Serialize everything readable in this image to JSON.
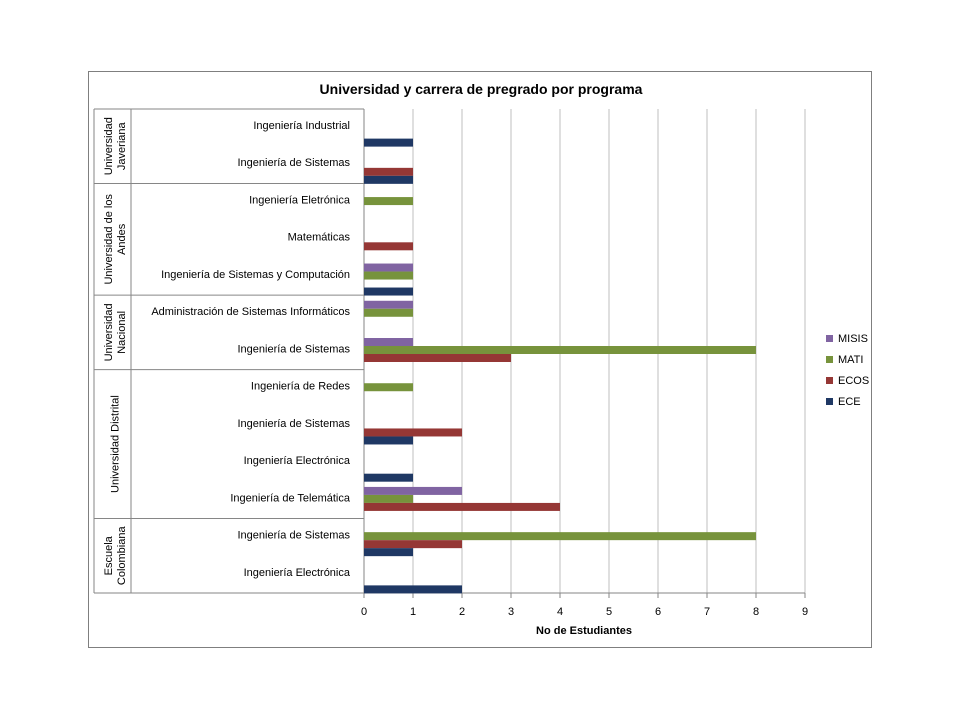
{
  "chart_data": {
    "type": "bar",
    "orientation": "horizontal",
    "title": "Universidad y carrera de pregrado por programa",
    "xlabel": "No de Estudiantes",
    "xlim": [
      0,
      9
    ],
    "xticks": [
      "0",
      "1",
      "2",
      "3",
      "4",
      "5",
      "6",
      "7",
      "8",
      "9"
    ],
    "grid": true,
    "legend_position": "right",
    "groups": [
      {
        "name": "Universidad Javeriana",
        "lines": [
          "Universidad",
          "Javeriana"
        ],
        "categories": [
          {
            "label": "Ingeniería Industrial",
            "values": {
              "MISIS": 0,
              "MATI": 0,
              "ECOS": 0,
              "ECE": 1
            }
          },
          {
            "label": "Ingeniería de Sistemas",
            "values": {
              "MISIS": 0,
              "MATI": 0,
              "ECOS": 1,
              "ECE": 1
            }
          }
        ]
      },
      {
        "name": "Universidad de los Andes",
        "lines": [
          "Universidad de los",
          "Andes"
        ],
        "categories": [
          {
            "label": "Ingeniería Eletrónica",
            "values": {
              "MISIS": 0,
              "MATI": 1,
              "ECOS": 0,
              "ECE": 0
            }
          },
          {
            "label": "Matemáticas",
            "values": {
              "MISIS": 0,
              "MATI": 0,
              "ECOS": 1,
              "ECE": 0
            }
          },
          {
            "label": "Ingeniería de Sistemas y Computación",
            "values": {
              "MISIS": 1,
              "MATI": 1,
              "ECOS": 0,
              "ECE": 1
            }
          }
        ]
      },
      {
        "name": "Universidad Nacional",
        "lines": [
          "Universidad",
          "Nacional"
        ],
        "categories": [
          {
            "label": "Administración de Sistemas Informáticos",
            "values": {
              "MISIS": 1,
              "MATI": 1,
              "ECOS": 0,
              "ECE": 0
            }
          },
          {
            "label": "Ingeniería de Sistemas",
            "values": {
              "MISIS": 1,
              "MATI": 8,
              "ECOS": 3,
              "ECE": 0
            }
          }
        ]
      },
      {
        "name": "Universidad Distrital",
        "lines": [
          "Universidad Distrital"
        ],
        "categories": [
          {
            "label": "Ingeniería de Redes",
            "values": {
              "MISIS": 0,
              "MATI": 1,
              "ECOS": 0,
              "ECE": 0
            }
          },
          {
            "label": "Ingeniería de Sistemas",
            "values": {
              "MISIS": 0,
              "MATI": 0,
              "ECOS": 2,
              "ECE": 1
            }
          },
          {
            "label": "Ingeniería Electrónica",
            "values": {
              "MISIS": 0,
              "MATI": 0,
              "ECOS": 0,
              "ECE": 1
            }
          },
          {
            "label": "Ingeniería de Telemática",
            "values": {
              "MISIS": 2,
              "MATI": 1,
              "ECOS": 4,
              "ECE": 0
            }
          }
        ]
      },
      {
        "name": "Escuela Colombiana",
        "lines": [
          "Escuela",
          "Colombiana"
        ],
        "categories": [
          {
            "label": "Ingeniería de Sistemas",
            "values": {
              "MISIS": 0,
              "MATI": 8,
              "ECOS": 2,
              "ECE": 1
            }
          },
          {
            "label": "Ingeniería Electrónica",
            "values": {
              "MISIS": 0,
              "MATI": 0,
              "ECOS": 0,
              "ECE": 2
            }
          }
        ]
      }
    ],
    "series": [
      {
        "name": "MISIS",
        "color": "#8064a2"
      },
      {
        "name": "MATI",
        "color": "#77933c"
      },
      {
        "name": "ECOS",
        "color": "#953735"
      },
      {
        "name": "ECE",
        "color": "#1f3864"
      }
    ]
  }
}
